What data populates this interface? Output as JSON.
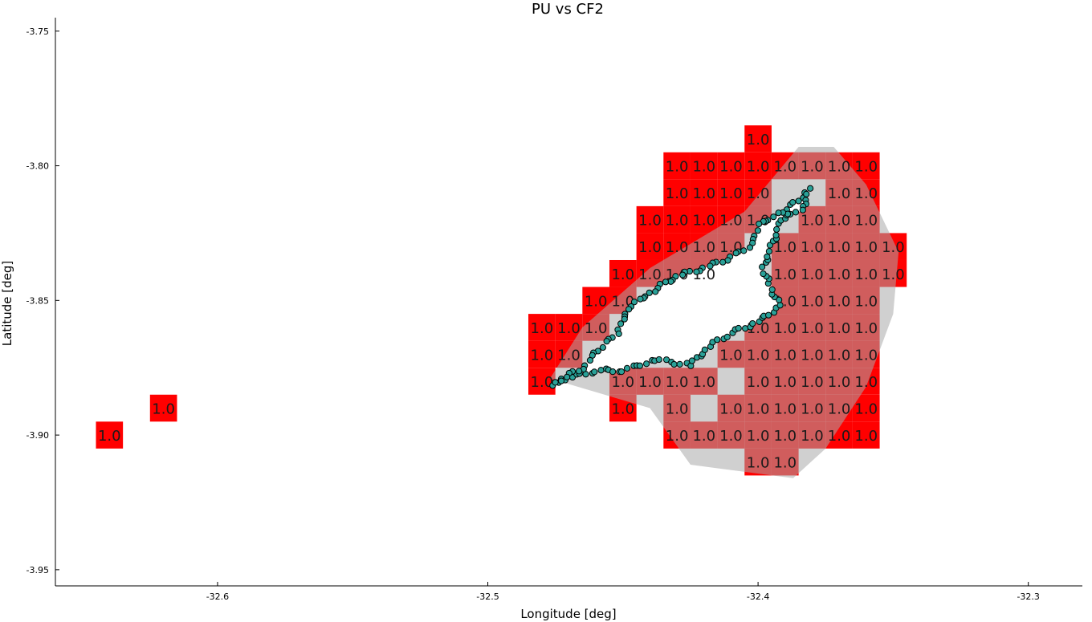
{
  "chart_data": {
    "type": "heatmap",
    "title": "PU vs CF2",
    "xlabel": "Longitude [deg]",
    "ylabel": "Latitude [deg]",
    "xlim": [
      -32.66,
      -32.28
    ],
    "ylim": [
      -3.956,
      -3.745
    ],
    "xticks": [
      {
        "value": -32.6,
        "label": "-32.6"
      },
      {
        "value": -32.5,
        "label": "-32.5"
      },
      {
        "value": -32.4,
        "label": "-32.4"
      },
      {
        "value": -32.3,
        "label": "-32.3"
      }
    ],
    "yticks": [
      {
        "value": -3.75,
        "label": "-3.75"
      },
      {
        "value": -3.8,
        "label": "-3.80"
      },
      {
        "value": -3.85,
        "label": "-3.85"
      },
      {
        "value": -3.9,
        "label": "-3.90"
      },
      {
        "value": -3.95,
        "label": "-3.95"
      }
    ],
    "grid": false,
    "cell_size_deg": 0.01,
    "cell_label": "1.0",
    "colors": {
      "cell": "#ff0000",
      "hull": "#aaaaaa",
      "track": "#2aa198",
      "track_edge": "#000000"
    },
    "cells": [
      {
        "lon": -32.64,
        "lat": -3.9,
        "value": 1.0
      },
      {
        "lon": -32.62,
        "lat": -3.89,
        "value": 1.0
      },
      {
        "lon": -32.48,
        "lat": -3.86,
        "value": 1.0
      },
      {
        "lon": -32.47,
        "lat": -3.86,
        "value": 1.0
      },
      {
        "lon": -32.46,
        "lat": -3.86,
        "value": 1.0
      },
      {
        "lon": -32.48,
        "lat": -3.87,
        "value": 1.0
      },
      {
        "lon": -32.47,
        "lat": -3.87,
        "value": 1.0
      },
      {
        "lon": -32.48,
        "lat": -3.88,
        "value": 1.0
      },
      {
        "lon": -32.46,
        "lat": -3.85,
        "value": 1.0
      },
      {
        "lon": -32.45,
        "lat": -3.85,
        "value": 1.0
      },
      {
        "lon": -32.45,
        "lat": -3.84,
        "value": 1.0
      },
      {
        "lon": -32.44,
        "lat": -3.84,
        "value": 1.0
      },
      {
        "lon": -32.43,
        "lat": -3.84,
        "value": 1.0
      },
      {
        "lon": -32.42,
        "lat": -3.84,
        "value": 1.0
      },
      {
        "lon": -32.44,
        "lat": -3.83,
        "value": 1.0
      },
      {
        "lon": -32.43,
        "lat": -3.83,
        "value": 1.0
      },
      {
        "lon": -32.42,
        "lat": -3.83,
        "value": 1.0
      },
      {
        "lon": -32.41,
        "lat": -3.83,
        "value": 1.0
      },
      {
        "lon": -32.44,
        "lat": -3.82,
        "value": 1.0
      },
      {
        "lon": -32.43,
        "lat": -3.82,
        "value": 1.0
      },
      {
        "lon": -32.42,
        "lat": -3.82,
        "value": 1.0
      },
      {
        "lon": -32.41,
        "lat": -3.82,
        "value": 1.0
      },
      {
        "lon": -32.4,
        "lat": -3.82,
        "value": 1.0
      },
      {
        "lon": -32.43,
        "lat": -3.81,
        "value": 1.0
      },
      {
        "lon": -32.42,
        "lat": -3.81,
        "value": 1.0
      },
      {
        "lon": -32.41,
        "lat": -3.81,
        "value": 1.0
      },
      {
        "lon": -32.4,
        "lat": -3.81,
        "value": 1.0
      },
      {
        "lon": -32.43,
        "lat": -3.8,
        "value": 1.0
      },
      {
        "lon": -32.42,
        "lat": -3.8,
        "value": 1.0
      },
      {
        "lon": -32.41,
        "lat": -3.8,
        "value": 1.0
      },
      {
        "lon": -32.4,
        "lat": -3.8,
        "value": 1.0
      },
      {
        "lon": -32.39,
        "lat": -3.8,
        "value": 1.0
      },
      {
        "lon": -32.38,
        "lat": -3.8,
        "value": 1.0
      },
      {
        "lon": -32.37,
        "lat": -3.8,
        "value": 1.0
      },
      {
        "lon": -32.36,
        "lat": -3.8,
        "value": 1.0
      },
      {
        "lon": -32.4,
        "lat": -3.79,
        "value": 1.0
      },
      {
        "lon": -32.37,
        "lat": -3.81,
        "value": 1.0
      },
      {
        "lon": -32.36,
        "lat": -3.81,
        "value": 1.0
      },
      {
        "lon": -32.38,
        "lat": -3.82,
        "value": 1.0
      },
      {
        "lon": -32.37,
        "lat": -3.82,
        "value": 1.0
      },
      {
        "lon": -32.36,
        "lat": -3.82,
        "value": 1.0
      },
      {
        "lon": -32.39,
        "lat": -3.83,
        "value": 1.0
      },
      {
        "lon": -32.38,
        "lat": -3.83,
        "value": 1.0
      },
      {
        "lon": -32.37,
        "lat": -3.83,
        "value": 1.0
      },
      {
        "lon": -32.36,
        "lat": -3.83,
        "value": 1.0
      },
      {
        "lon": -32.35,
        "lat": -3.83,
        "value": 1.0
      },
      {
        "lon": -32.39,
        "lat": -3.84,
        "value": 1.0
      },
      {
        "lon": -32.38,
        "lat": -3.84,
        "value": 1.0
      },
      {
        "lon": -32.37,
        "lat": -3.84,
        "value": 1.0
      },
      {
        "lon": -32.36,
        "lat": -3.84,
        "value": 1.0
      },
      {
        "lon": -32.35,
        "lat": -3.84,
        "value": 1.0
      },
      {
        "lon": -32.39,
        "lat": -3.85,
        "value": 1.0
      },
      {
        "lon": -32.38,
        "lat": -3.85,
        "value": 1.0
      },
      {
        "lon": -32.37,
        "lat": -3.85,
        "value": 1.0
      },
      {
        "lon": -32.36,
        "lat": -3.85,
        "value": 1.0
      },
      {
        "lon": -32.4,
        "lat": -3.86,
        "value": 1.0
      },
      {
        "lon": -32.39,
        "lat": -3.86,
        "value": 1.0
      },
      {
        "lon": -32.38,
        "lat": -3.86,
        "value": 1.0
      },
      {
        "lon": -32.37,
        "lat": -3.86,
        "value": 1.0
      },
      {
        "lon": -32.36,
        "lat": -3.86,
        "value": 1.0
      },
      {
        "lon": -32.41,
        "lat": -3.87,
        "value": 1.0
      },
      {
        "lon": -32.4,
        "lat": -3.87,
        "value": 1.0
      },
      {
        "lon": -32.39,
        "lat": -3.87,
        "value": 1.0
      },
      {
        "lon": -32.38,
        "lat": -3.87,
        "value": 1.0
      },
      {
        "lon": -32.37,
        "lat": -3.87,
        "value": 1.0
      },
      {
        "lon": -32.36,
        "lat": -3.87,
        "value": 1.0
      },
      {
        "lon": -32.45,
        "lat": -3.88,
        "value": 1.0
      },
      {
        "lon": -32.44,
        "lat": -3.88,
        "value": 1.0
      },
      {
        "lon": -32.43,
        "lat": -3.88,
        "value": 1.0
      },
      {
        "lon": -32.42,
        "lat": -3.88,
        "value": 1.0
      },
      {
        "lon": -32.4,
        "lat": -3.88,
        "value": 1.0
      },
      {
        "lon": -32.39,
        "lat": -3.88,
        "value": 1.0
      },
      {
        "lon": -32.38,
        "lat": -3.88,
        "value": 1.0
      },
      {
        "lon": -32.37,
        "lat": -3.88,
        "value": 1.0
      },
      {
        "lon": -32.36,
        "lat": -3.88,
        "value": 1.0
      },
      {
        "lon": -32.45,
        "lat": -3.89,
        "value": 1.0
      },
      {
        "lon": -32.43,
        "lat": -3.89,
        "value": 1.0
      },
      {
        "lon": -32.41,
        "lat": -3.89,
        "value": 1.0
      },
      {
        "lon": -32.4,
        "lat": -3.89,
        "value": 1.0
      },
      {
        "lon": -32.39,
        "lat": -3.89,
        "value": 1.0
      },
      {
        "lon": -32.38,
        "lat": -3.89,
        "value": 1.0
      },
      {
        "lon": -32.37,
        "lat": -3.89,
        "value": 1.0
      },
      {
        "lon": -32.36,
        "lat": -3.89,
        "value": 1.0
      },
      {
        "lon": -32.43,
        "lat": -3.9,
        "value": 1.0
      },
      {
        "lon": -32.42,
        "lat": -3.9,
        "value": 1.0
      },
      {
        "lon": -32.41,
        "lat": -3.9,
        "value": 1.0
      },
      {
        "lon": -32.4,
        "lat": -3.9,
        "value": 1.0
      },
      {
        "lon": -32.39,
        "lat": -3.9,
        "value": 1.0
      },
      {
        "lon": -32.38,
        "lat": -3.9,
        "value": 1.0
      },
      {
        "lon": -32.37,
        "lat": -3.9,
        "value": 1.0
      },
      {
        "lon": -32.36,
        "lat": -3.9,
        "value": 1.0
      },
      {
        "lon": -32.4,
        "lat": -3.91,
        "value": 1.0
      },
      {
        "lon": -32.39,
        "lat": -3.91,
        "value": 1.0
      }
    ],
    "hull": [
      [
        -32.477,
        -3.879
      ],
      [
        -32.465,
        -3.86
      ],
      [
        -32.44,
        -3.838
      ],
      [
        -32.405,
        -3.817
      ],
      [
        -32.385,
        -3.793
      ],
      [
        -32.372,
        -3.793
      ],
      [
        -32.36,
        -3.807
      ],
      [
        -32.348,
        -3.832
      ],
      [
        -32.35,
        -3.855
      ],
      [
        -32.36,
        -3.882
      ],
      [
        -32.375,
        -3.905
      ],
      [
        -32.387,
        -3.916
      ],
      [
        -32.425,
        -3.911
      ],
      [
        -32.44,
        -3.89
      ]
    ],
    "island": [
      [
        -32.476,
        -3.881
      ],
      [
        -32.471,
        -3.879
      ],
      [
        -32.46,
        -3.876
      ],
      [
        -32.45,
        -3.876
      ],
      [
        -32.438,
        -3.872
      ],
      [
        -32.425,
        -3.874
      ],
      [
        -32.418,
        -3.867
      ],
      [
        -32.41,
        -3.862
      ],
      [
        -32.4,
        -3.858
      ],
      [
        -32.392,
        -3.852
      ],
      [
        -32.396,
        -3.844
      ],
      [
        -32.398,
        -3.838
      ],
      [
        -32.395,
        -3.83
      ],
      [
        -32.392,
        -3.822
      ],
      [
        -32.388,
        -3.815
      ],
      [
        -32.381,
        -3.809
      ],
      [
        -32.384,
        -3.817
      ],
      [
        -32.393,
        -3.818
      ],
      [
        -32.4,
        -3.822
      ],
      [
        -32.402,
        -3.829
      ],
      [
        -32.41,
        -3.834
      ],
      [
        -32.42,
        -3.838
      ],
      [
        -32.43,
        -3.841
      ],
      [
        -32.44,
        -3.847
      ],
      [
        -32.448,
        -3.853
      ],
      [
        -32.452,
        -3.862
      ],
      [
        -32.458,
        -3.867
      ],
      [
        -32.465,
        -3.875
      ]
    ]
  }
}
